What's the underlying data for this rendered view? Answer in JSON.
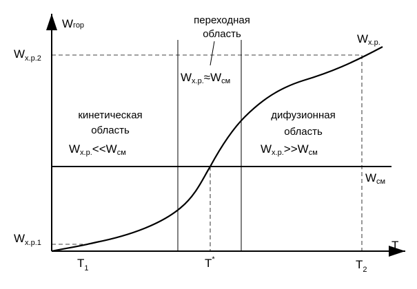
{
  "axes": {
    "y_label": {
      "main": "W",
      "sub": "гор"
    },
    "x_label": "T"
  },
  "y_ticks": [
    {
      "main": "W",
      "sub": "х.р.2"
    },
    {
      "main": "W",
      "sub": "х.р.1"
    }
  ],
  "x_ticks": [
    {
      "main": "T",
      "sub": "1"
    },
    {
      "main": "T",
      "sup": "*"
    },
    {
      "main": "T",
      "sub": "2"
    }
  ],
  "curve_label": {
    "main": "W",
    "sub": "х.р."
  },
  "line_label": {
    "main": "W",
    "sub": "см"
  },
  "regions": [
    {
      "line1": "кинетическая",
      "line2": "область",
      "formula": {
        "left": {
          "main": "W",
          "sub": "х.р."
        },
        "op": "<<",
        "right": {
          "main": "W",
          "sub": "см"
        }
      }
    },
    {
      "line1": "переходная",
      "line2": "область",
      "formula": {
        "left": {
          "main": "W",
          "sub": "х.р."
        },
        "op": "≈",
        "right": {
          "main": "W",
          "sub": "см"
        }
      }
    },
    {
      "line1": "дифузионная",
      "line2": "область",
      "formula": {
        "left": {
          "main": "W",
          "sub": "х.р."
        },
        "op": ">>",
        "right": {
          "main": "W",
          "sub": "см"
        }
      }
    }
  ]
}
